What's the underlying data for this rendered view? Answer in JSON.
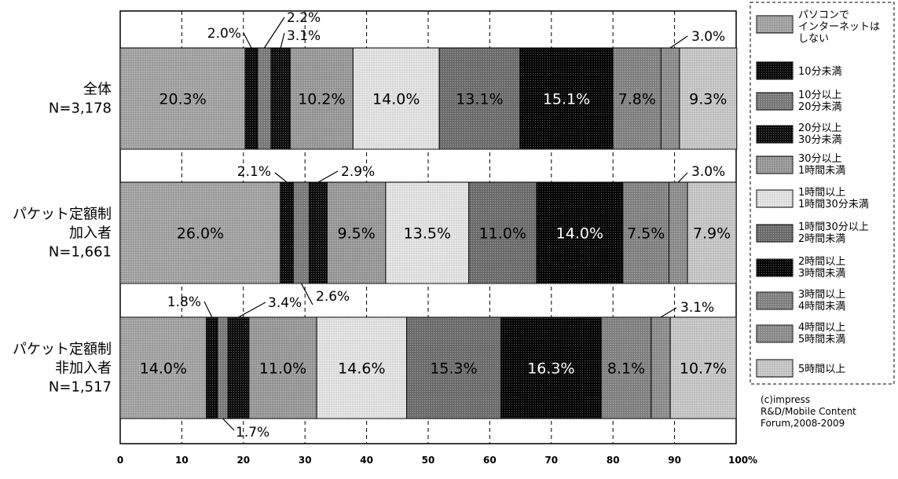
{
  "chart_data": {
    "type": "bar",
    "orientation": "horizontal",
    "stacked": true,
    "title": "",
    "xlabel": "",
    "ylabel": "",
    "xlim": [
      0,
      100
    ],
    "x_ticks": [
      {
        "value": 0,
        "label": "0"
      },
      {
        "value": 10,
        "label": "10"
      },
      {
        "value": 20,
        "label": "20"
      },
      {
        "value": 30,
        "label": "30"
      },
      {
        "value": 40,
        "label": "40"
      },
      {
        "value": 50,
        "label": "50"
      },
      {
        "value": 60,
        "label": "60"
      },
      {
        "value": 70,
        "label": "70"
      },
      {
        "value": 80,
        "label": "80"
      },
      {
        "value": 90,
        "label": "90"
      },
      {
        "value": 100,
        "label": "100%"
      }
    ],
    "grid": "vertical-dashed",
    "legend_position": "right",
    "categories": [
      [
        "全体",
        "N=3,178"
      ],
      [
        "パケット定額制",
        "加入者",
        "N=1,661"
      ],
      [
        "パケット定額制",
        "非加入者",
        "N=1,517"
      ]
    ],
    "series": [
      {
        "name": "パソコンでインターネットはしない",
        "legend_lines": [
          "パソコンで",
          "インターネットは",
          "しない"
        ],
        "color": "#a4a4a4",
        "values": [
          20.3,
          26.0,
          14.0
        ],
        "labels": [
          "20.3%",
          "26.0%",
          "14.0%"
        ]
      },
      {
        "name": "10分未満",
        "legend_lines": [
          "10分未満"
        ],
        "color": "#0a0a0a",
        "values": [
          2.0,
          2.1,
          1.8
        ],
        "labels": [
          "2.0%",
          "2.1%",
          "1.8%"
        ]
      },
      {
        "name": "10分以上20分未満",
        "legend_lines": [
          "10分以上",
          "20分未満"
        ],
        "color": "#7c7c7c",
        "values": [
          2.2,
          2.6,
          1.7
        ],
        "labels": [
          "2.2%",
          "2.6%",
          "1.7%"
        ]
      },
      {
        "name": "20分以上30分未満",
        "legend_lines": [
          "20分以上",
          "30分未満"
        ],
        "color": "#0e0e0e",
        "values": [
          3.1,
          2.9,
          3.4
        ],
        "labels": [
          "3.1%",
          "2.9%",
          "3.4%"
        ]
      },
      {
        "name": "30分以上1時間未満",
        "legend_lines": [
          "30分以上",
          "1時間未満"
        ],
        "color": "#9a9a9a",
        "values": [
          10.2,
          9.5,
          11.0
        ],
        "labels": [
          "10.2%",
          "9.5%",
          "11.0%"
        ]
      },
      {
        "name": "1時間以上1時間30分未満",
        "legend_lines": [
          "1時間以上",
          "1時間30分未満"
        ],
        "color": "#e4e4e4",
        "values": [
          14.0,
          13.5,
          14.6
        ],
        "labels": [
          "14.0%",
          "13.5%",
          "14.6%"
        ]
      },
      {
        "name": "1時間30分以上2時間未満",
        "legend_lines": [
          "1時間30分以上",
          "2時間未満"
        ],
        "color": "#6f6f6f",
        "values": [
          13.1,
          11.0,
          15.3
        ],
        "labels": [
          "13.1%",
          "11.0%",
          "15.3%"
        ]
      },
      {
        "name": "2時間以上3時間未満",
        "legend_lines": [
          "2時間以上",
          "3時間未満"
        ],
        "color": "#050505",
        "values": [
          15.1,
          14.0,
          16.3
        ],
        "labels": [
          "15.1%",
          "14.0%",
          "16.3%"
        ]
      },
      {
        "name": "3時間以上4時間未満",
        "legend_lines": [
          "3時間以上",
          "4時間未満"
        ],
        "color": "#848484",
        "values": [
          7.8,
          7.5,
          8.1
        ],
        "labels": [
          "7.8%",
          "7.5%",
          "8.1%"
        ]
      },
      {
        "name": "4時間以上5時間未満",
        "legend_lines": [
          "4時間以上",
          "5時間未満"
        ],
        "color": "#8e8e8e",
        "values": [
          3.0,
          3.0,
          3.1
        ],
        "labels": [
          "3.0%",
          "3.0%",
          "3.1%"
        ]
      },
      {
        "name": "5時間以上",
        "legend_lines": [
          "5時間以上"
        ],
        "color": "#c8c8c8",
        "values": [
          9.3,
          7.9,
          10.7
        ],
        "labels": [
          "9.3%",
          "7.9%",
          "10.7%"
        ]
      }
    ],
    "inside_label_series": [
      0,
      4,
      5,
      6,
      7,
      8,
      10
    ],
    "credit_lines": [
      "(c)impress",
      "R&D/Mobile Content",
      "Forum,2008-2009"
    ]
  }
}
